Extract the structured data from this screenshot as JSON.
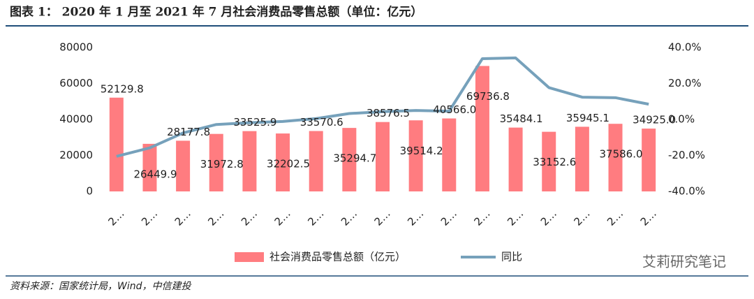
{
  "chart_data": {
    "type": "bar_line",
    "title": "图表 1：  2020 年 1 月至 2021 年 7 月社会消费品零售总额（单位：亿元）",
    "source": "资料来源：国家统计局，Wind，中信建投",
    "watermark": "艾莉研究笔记",
    "categories": [
      "2…",
      "2…",
      "2…",
      "2…",
      "2…",
      "2…",
      "2…",
      "2…",
      "2…",
      "2…",
      "2…",
      "2…",
      "2…",
      "2…",
      "2…",
      "2…",
      "2…"
    ],
    "series": [
      {
        "name": "社会消费品零售总额（亿元）",
        "color": "#ff7c80",
        "type": "bar",
        "values": [
          52129.8,
          26449.9,
          28177.8,
          31972.8,
          33525.9,
          32202.5,
          33570.6,
          35294.7,
          38576.5,
          39514.2,
          40566.0,
          69736.8,
          35484.1,
          33152.6,
          35945.1,
          37586.0,
          34925.0
        ],
        "value_labels": [
          "52129.8",
          "26449.9",
          "28177.8",
          "31972.8",
          "33525.9",
          "32202.5",
          "33570.6",
          "35294.7",
          "38576.5",
          "39514.2",
          "40566.0",
          "69736.8",
          "35484.1",
          "33152.6",
          "35945.1",
          "37586.0",
          "34925.0"
        ]
      },
      {
        "name": "同比",
        "color": "#76a1bb",
        "type": "line",
        "axis": "y2",
        "values": [
          -20.5,
          -15.8,
          -7.5,
          -2.8,
          -1.8,
          -1.1,
          0.5,
          3.3,
          4.3,
          5.0,
          4.6,
          33.8,
          34.2,
          17.7,
          12.4,
          12.1,
          8.5
        ]
      }
    ],
    "ylim": [
      0,
      80000
    ],
    "yticks": [
      0,
      20000,
      40000,
      60000,
      80000
    ],
    "y2lim": [
      -40,
      40
    ],
    "y2ticks": [
      {
        "value": -40,
        "label": "-40.0%"
      },
      {
        "value": -20,
        "label": "-20.0%"
      },
      {
        "value": 0,
        "label": "0.0%"
      },
      {
        "value": 20,
        "label": "20.0%"
      },
      {
        "value": 40,
        "label": "40.0%"
      }
    ],
    "legend": "bottom"
  }
}
